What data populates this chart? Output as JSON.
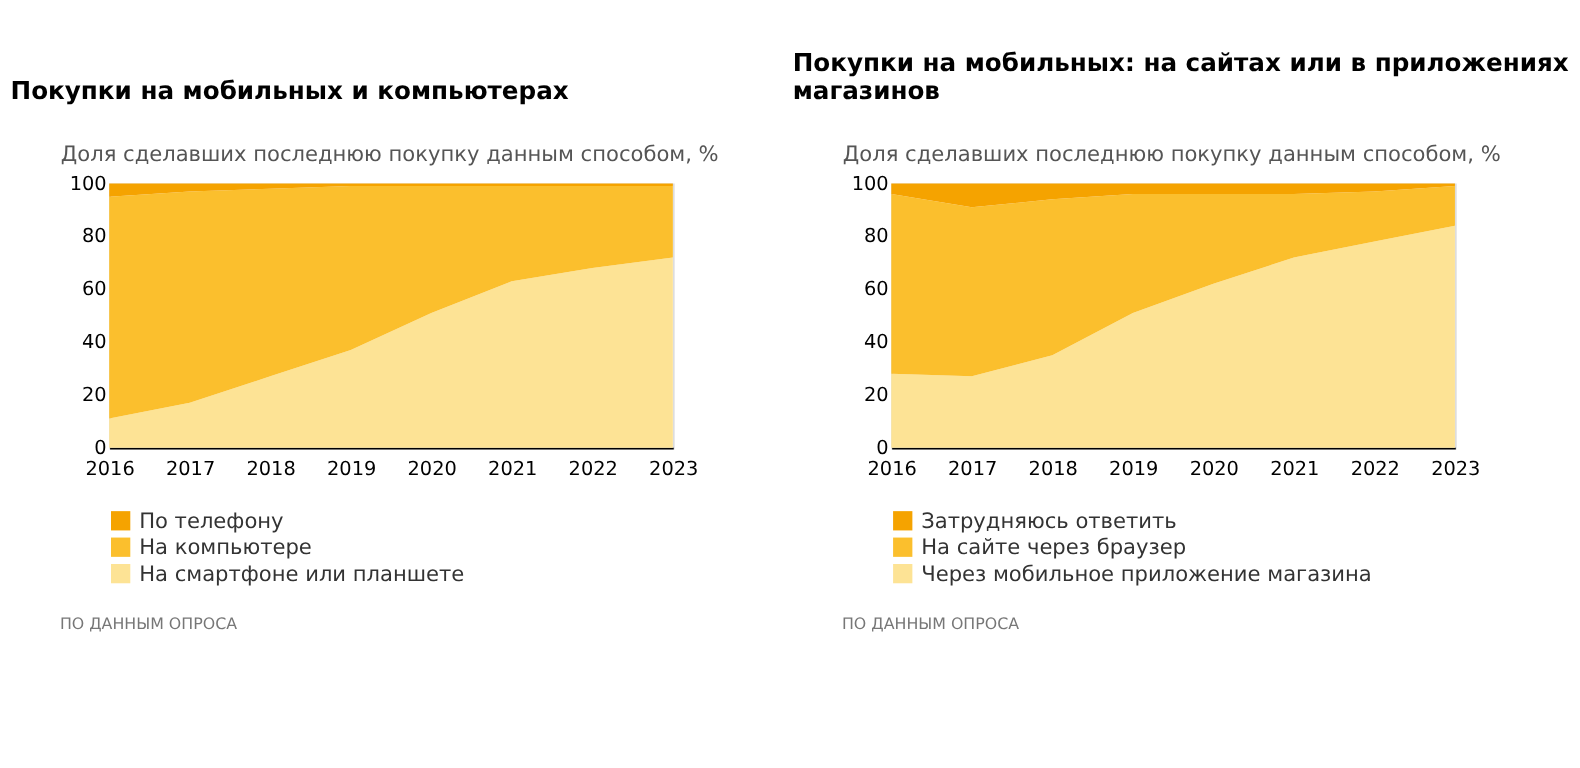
{
  "chart_data": [
    {
      "type": "area",
      "title": "Покупки на мобильных и компьютерах",
      "ylabel": "Доля сделавших последнюю покупку данным способом, %",
      "x": [
        2016,
        2017,
        2018,
        2019,
        2020,
        2021,
        2022,
        2023
      ],
      "xlim": [
        2016,
        2023
      ],
      "xticks": [
        2016,
        2017,
        2018,
        2019,
        2020,
        2021,
        2022,
        2023
      ],
      "ylim": [
        0,
        100
      ],
      "yticks": [
        0,
        20,
        40,
        60,
        80,
        100
      ],
      "stacked": true,
      "grid": false,
      "legend": "bottom",
      "annotations": [
        "ПО ДАННЫМ ОПРОСА"
      ],
      "series": [
        {
          "name": "На смартфоне или планшете",
          "color": "#fde395",
          "values": [
            11,
            17,
            27,
            37,
            51,
            63,
            68,
            72
          ]
        },
        {
          "name": "На компьютере",
          "color": "#fbbf2d",
          "values": [
            84,
            80,
            71,
            62,
            48,
            36,
            31,
            27
          ]
        },
        {
          "name": "По телефону",
          "color": "#f5a300",
          "values": [
            5,
            3,
            2,
            1,
            1,
            1,
            1,
            1
          ]
        }
      ]
    },
    {
      "type": "area",
      "title": "Покупки на мобильных: на сайтах или в приложениях магазинов",
      "ylabel": "Доля сделавших последнюю покупку данным способом, %",
      "x": [
        2016,
        2017,
        2018,
        2019,
        2020,
        2021,
        2022,
        2023
      ],
      "xlim": [
        2016,
        2023
      ],
      "xticks": [
        2016,
        2017,
        2018,
        2019,
        2020,
        2021,
        2022,
        2023
      ],
      "ylim": [
        0,
        100
      ],
      "yticks": [
        0,
        20,
        40,
        60,
        80,
        100
      ],
      "stacked": true,
      "grid": false,
      "legend": "bottom",
      "annotations": [
        "ПО ДАННЫМ ОПРОСА"
      ],
      "series": [
        {
          "name": "Через мобильное приложение магазина",
          "color": "#fde395",
          "values": [
            28,
            27,
            35,
            51,
            62,
            72,
            78,
            84
          ]
        },
        {
          "name": "На сайте через браузер",
          "color": "#fbbf2d",
          "values": [
            68,
            64,
            59,
            45,
            34,
            24,
            19,
            15
          ]
        },
        {
          "name": "Затрудняюсь ответить",
          "color": "#f5a300",
          "values": [
            4,
            9,
            6,
            4,
            4,
            4,
            3,
            1
          ]
        }
      ]
    }
  ]
}
